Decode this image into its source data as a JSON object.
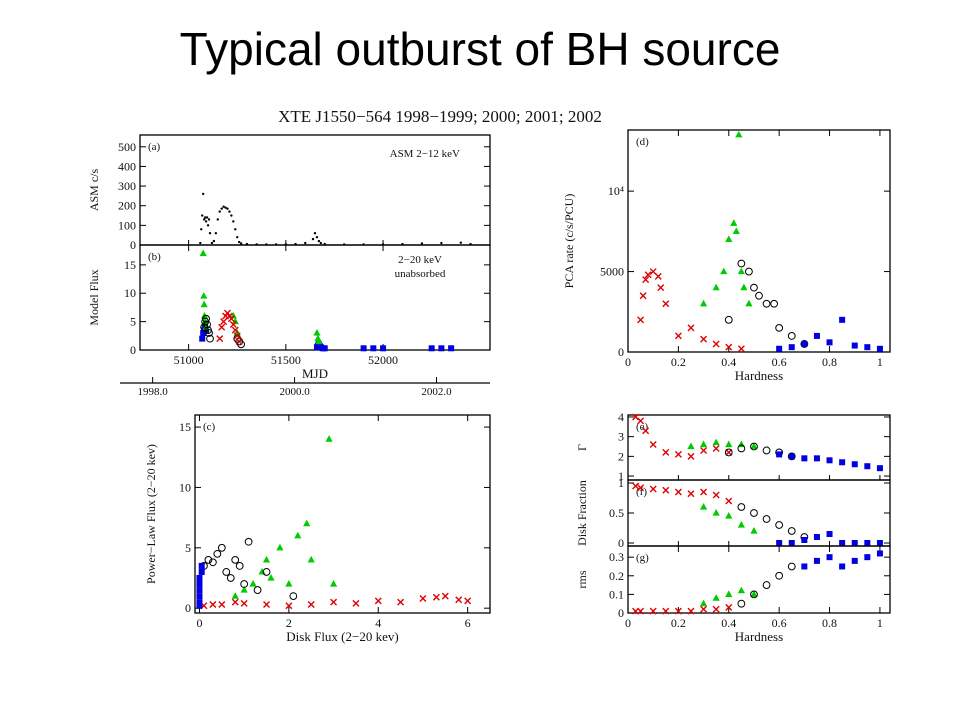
{
  "slide_title": "Typical outburst of BH source",
  "header": "XTE J1550−564  1998−1999; 2000; 2001; 2002",
  "colors": {
    "black": "#000000",
    "red": "#e00000",
    "green": "#00cc00",
    "blue": "#0000e0"
  },
  "markers": {
    "black": "open-circle",
    "red": "cross",
    "green": "triangle",
    "blue": "square"
  },
  "chart_data": [
    {
      "panel": "(a)",
      "type": "scatter",
      "annotation": "ASM 2−12 keV",
      "ylabel": "ASM c/s",
      "xlabel": "",
      "xlim": [
        50750,
        52550
      ],
      "ylim": [
        0,
        560
      ],
      "yticks": [
        "0",
        "100",
        "200",
        "300",
        "400",
        "500"
      ],
      "series": [
        {
          "color": "black",
          "marker": "dot",
          "x": [
            51060,
            51065,
            51070,
            51075,
            51080,
            51085,
            51090,
            51095,
            51100,
            51105,
            51110,
            51120,
            51130,
            51140,
            51150,
            51160,
            51170,
            51180,
            51190,
            51200,
            51210,
            51220,
            51230,
            51240,
            51250,
            51260,
            51270,
            51300,
            51350,
            51400,
            51450,
            51500,
            51550,
            51600,
            51640,
            51650,
            51660,
            51670,
            51680,
            51700,
            51800,
            51900,
            52000,
            52100,
            52200,
            52300,
            52400,
            52450
          ],
          "y": [
            10,
            80,
            150,
            260,
            130,
            140,
            120,
            140,
            100,
            130,
            60,
            10,
            20,
            60,
            130,
            170,
            185,
            195,
            190,
            185,
            170,
            150,
            120,
            80,
            40,
            15,
            8,
            5,
            3,
            3,
            3,
            3,
            5,
            10,
            30,
            60,
            40,
            20,
            10,
            5,
            3,
            3,
            3,
            5,
            8,
            10,
            12,
            5
          ]
        }
      ]
    },
    {
      "panel": "(b)",
      "type": "scatter",
      "annotation": "2−20 keV unabsorbed",
      "ylabel": "Model Flux",
      "xlabel": "MJD",
      "xlim": [
        50750,
        52550
      ],
      "ylim": [
        0,
        18.5
      ],
      "xticks": [
        "51000",
        "51500",
        "52000"
      ],
      "yticks": [
        "0",
        "5",
        "10",
        "15"
      ],
      "top_axis": [
        "1998.0",
        "2000.0",
        "2002.0"
      ],
      "series": [
        {
          "color": "blue",
          "marker": "square",
          "x": [
            51070,
            51075,
            51080,
            51085,
            51090,
            51660,
            51665,
            51670,
            51675,
            51680,
            51690,
            51700,
            51900,
            51950,
            52000,
            52250,
            52300,
            52350
          ],
          "y": [
            2,
            3,
            3.5,
            4,
            3.5,
            0.5,
            0.8,
            1,
            0.7,
            0.5,
            0.3,
            0.3,
            0.3,
            0.3,
            0.3,
            0.3,
            0.3,
            0.3
          ]
        },
        {
          "color": "green",
          "marker": "triangle",
          "x": [
            51075,
            51078,
            51080,
            51082,
            51085,
            51090,
            51230,
            51240,
            51250,
            51660,
            51665,
            51670
          ],
          "y": [
            17,
            9.5,
            8,
            6,
            5,
            4,
            6,
            5,
            3,
            3,
            2,
            1.5
          ]
        },
        {
          "color": "black",
          "marker": "open-circle",
          "x": [
            51080,
            51085,
            51090,
            51095,
            51100,
            51105,
            51110,
            51250,
            51260,
            51270
          ],
          "y": [
            4,
            5,
            5.5,
            4.5,
            3.5,
            3,
            2,
            2,
            1.5,
            1
          ]
        },
        {
          "color": "red",
          "marker": "cross",
          "x": [
            51160,
            51170,
            51180,
            51190,
            51200,
            51210,
            51220,
            51230,
            51240,
            51250,
            51260
          ],
          "y": [
            2,
            4,
            5,
            6,
            6.5,
            6,
            5.5,
            4.5,
            3.5,
            2.5,
            1.5
          ]
        }
      ]
    },
    {
      "panel": "(c)",
      "type": "scatter",
      "xlabel": "Disk Flux (2−20 kev)",
      "ylabel": "Power−Law Flux (2−20 kev)",
      "xlim": [
        -0.1,
        6.5
      ],
      "ylim": [
        -0.4,
        16
      ],
      "xticks": [
        "0",
        "2",
        "4",
        "6"
      ],
      "yticks": [
        "0",
        "5",
        "10",
        "15"
      ],
      "series": [
        {
          "color": "red",
          "marker": "cross",
          "x": [
            0.1,
            0.3,
            0.5,
            0.8,
            1.0,
            1.5,
            2.0,
            2.5,
            3.0,
            3.5,
            4.0,
            4.5,
            5.0,
            5.3,
            5.5,
            5.8,
            6.0
          ],
          "y": [
            0.2,
            0.3,
            0.3,
            0.5,
            0.4,
            0.3,
            0.2,
            0.3,
            0.5,
            0.4,
            0.6,
            0.5,
            0.8,
            0.9,
            1.0,
            0.7,
            0.6
          ]
        },
        {
          "color": "green",
          "marker": "triangle",
          "x": [
            0.8,
            1.0,
            1.2,
            1.4,
            1.5,
            1.6,
            1.8,
            2.0,
            2.2,
            2.4,
            2.5,
            2.9,
            3.0
          ],
          "y": [
            1,
            1.5,
            2,
            3,
            4,
            2.5,
            5,
            2,
            6,
            7,
            4,
            14,
            2
          ]
        },
        {
          "color": "black",
          "marker": "open-circle",
          "x": [
            0.1,
            0.2,
            0.3,
            0.4,
            0.5,
            0.6,
            0.7,
            0.8,
            0.9,
            1.0,
            1.1,
            1.3,
            1.5,
            2.1
          ],
          "y": [
            3.5,
            4,
            3.8,
            4.5,
            5,
            3,
            2.5,
            4,
            3.5,
            2,
            5.5,
            1.5,
            3,
            1
          ]
        },
        {
          "color": "blue",
          "marker": "square",
          "x": [
            0,
            0,
            0,
            0,
            0,
            0,
            0.05,
            0.05
          ],
          "y": [
            0.2,
            0.5,
            1,
            1.5,
            2,
            2.5,
            3,
            3.5
          ]
        }
      ]
    },
    {
      "panel": "(d)",
      "type": "scatter",
      "xlabel": "Hardness",
      "ylabel": "PCA rate (c/s/PCU)",
      "xlim": [
        0,
        1.04
      ],
      "ylim": [
        0,
        13800
      ],
      "xticks": [
        "0",
        "0.2",
        "0.4",
        "0.6",
        "0.8",
        "1"
      ],
      "yticks": [
        "0",
        "5000",
        "10⁴"
      ],
      "series": [
        {
          "color": "red",
          "marker": "cross",
          "x": [
            0.05,
            0.06,
            0.07,
            0.08,
            0.1,
            0.12,
            0.13,
            0.15,
            0.2,
            0.25,
            0.3,
            0.35,
            0.4,
            0.45
          ],
          "y": [
            2000,
            3500,
            4500,
            4800,
            5000,
            4700,
            4000,
            3000,
            1000,
            1500,
            800,
            500,
            300,
            200
          ]
        },
        {
          "color": "green",
          "marker": "triangle",
          "x": [
            0.3,
            0.35,
            0.38,
            0.4,
            0.42,
            0.43,
            0.44,
            0.45,
            0.46,
            0.48
          ],
          "y": [
            3000,
            4000,
            5000,
            7000,
            8000,
            7500,
            13500,
            5000,
            4000,
            3000
          ]
        },
        {
          "color": "black",
          "marker": "open-circle",
          "x": [
            0.4,
            0.45,
            0.48,
            0.5,
            0.52,
            0.55,
            0.58,
            0.6,
            0.65,
            0.7
          ],
          "y": [
            2000,
            5500,
            5000,
            4000,
            3500,
            3000,
            3000,
            1500,
            1000,
            500
          ]
        },
        {
          "color": "blue",
          "marker": "square",
          "x": [
            0.6,
            0.65,
            0.7,
            0.75,
            0.8,
            0.85,
            0.9,
            0.95,
            1.0
          ],
          "y": [
            200,
            300,
            500,
            1000,
            600,
            2000,
            400,
            300,
            200
          ]
        }
      ]
    },
    {
      "panel": "(e)",
      "type": "scatter",
      "ylabel": "Γ",
      "xlim": [
        0,
        1.04
      ],
      "ylim": [
        0.8,
        4.1
      ],
      "yticks": [
        "1",
        "2",
        "3",
        "4"
      ],
      "series": [
        {
          "color": "red",
          "marker": "cross",
          "x": [
            0.03,
            0.05,
            0.07,
            0.1,
            0.15,
            0.2,
            0.25,
            0.3,
            0.35,
            0.4
          ],
          "y": [
            4,
            3.8,
            3.3,
            2.6,
            2.2,
            2.1,
            2.0,
            2.3,
            2.4,
            2.2
          ]
        },
        {
          "color": "green",
          "marker": "triangle",
          "x": [
            0.25,
            0.3,
            0.35,
            0.4,
            0.45,
            0.5
          ],
          "y": [
            2.5,
            2.6,
            2.7,
            2.6,
            2.6,
            2.5
          ]
        },
        {
          "color": "black",
          "marker": "open-circle",
          "x": [
            0.4,
            0.45,
            0.5,
            0.55,
            0.6,
            0.65
          ],
          "y": [
            2.2,
            2.4,
            2.5,
            2.3,
            2.2,
            2.0
          ]
        },
        {
          "color": "blue",
          "marker": "square",
          "x": [
            0.6,
            0.65,
            0.7,
            0.75,
            0.8,
            0.85,
            0.9,
            0.95,
            1.0
          ],
          "y": [
            2.1,
            2.0,
            1.9,
            1.9,
            1.8,
            1.7,
            1.6,
            1.5,
            1.4
          ]
        }
      ]
    },
    {
      "panel": "(f)",
      "type": "scatter",
      "ylabel": "Disk Fraction",
      "xlim": [
        0,
        1.04
      ],
      "ylim": [
        -0.05,
        1.05
      ],
      "yticks": [
        "0",
        "0.5",
        "1"
      ],
      "series": [
        {
          "color": "red",
          "marker": "cross",
          "x": [
            0.03,
            0.05,
            0.1,
            0.15,
            0.2,
            0.25,
            0.3,
            0.35,
            0.4
          ],
          "y": [
            0.95,
            0.92,
            0.9,
            0.88,
            0.85,
            0.82,
            0.85,
            0.8,
            0.7
          ]
        },
        {
          "color": "green",
          "marker": "triangle",
          "x": [
            0.3,
            0.35,
            0.4,
            0.45,
            0.5
          ],
          "y": [
            0.6,
            0.5,
            0.45,
            0.3,
            0.2
          ]
        },
        {
          "color": "black",
          "marker": "open-circle",
          "x": [
            0.45,
            0.5,
            0.55,
            0.6,
            0.65,
            0.7
          ],
          "y": [
            0.6,
            0.5,
            0.4,
            0.3,
            0.2,
            0.1
          ]
        },
        {
          "color": "blue",
          "marker": "square",
          "x": [
            0.6,
            0.65,
            0.7,
            0.75,
            0.8,
            0.85,
            0.9,
            0.95,
            1.0
          ],
          "y": [
            0,
            0,
            0.05,
            0.1,
            0.15,
            0,
            0,
            0,
            0
          ]
        }
      ]
    },
    {
      "panel": "(g)",
      "type": "scatter",
      "ylabel": "rms",
      "xlabel": "Hardness",
      "xlim": [
        0,
        1.04
      ],
      "ylim": [
        0,
        0.36
      ],
      "xticks": [
        "0",
        "0.2",
        "0.4",
        "0.6",
        "0.8",
        "1"
      ],
      "yticks": [
        "0",
        "0.1",
        "0.2",
        "0.3"
      ],
      "series": [
        {
          "color": "red",
          "marker": "cross",
          "x": [
            0.03,
            0.05,
            0.1,
            0.15,
            0.2,
            0.25,
            0.3,
            0.35,
            0.4
          ],
          "y": [
            0.01,
            0.01,
            0.01,
            0.01,
            0.01,
            0.01,
            0.02,
            0.02,
            0.03
          ]
        },
        {
          "color": "green",
          "marker": "triangle",
          "x": [
            0.3,
            0.35,
            0.4,
            0.45,
            0.5
          ],
          "y": [
            0.05,
            0.08,
            0.1,
            0.12,
            0.1
          ]
        },
        {
          "color": "black",
          "marker": "open-circle",
          "x": [
            0.45,
            0.5,
            0.55,
            0.6,
            0.65
          ],
          "y": [
            0.05,
            0.1,
            0.15,
            0.2,
            0.25
          ]
        },
        {
          "color": "blue",
          "marker": "square",
          "x": [
            0.7,
            0.75,
            0.8,
            0.85,
            0.9,
            0.95,
            1.0
          ],
          "y": [
            0.25,
            0.28,
            0.3,
            0.25,
            0.28,
            0.3,
            0.32
          ]
        }
      ]
    }
  ]
}
